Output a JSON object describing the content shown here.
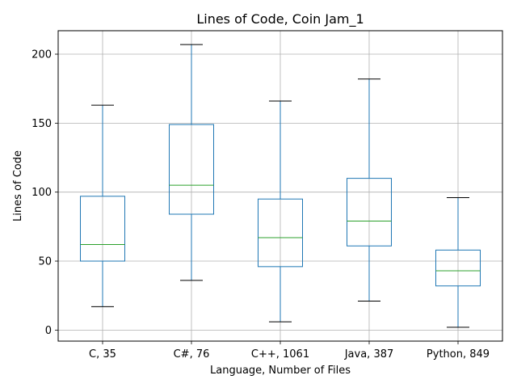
{
  "chart_data": {
    "type": "box",
    "title": "Lines of Code, Coin Jam_1",
    "xlabel": "Language, Number of Files",
    "ylabel": "Lines of Code",
    "ylim": [
      -8,
      217
    ],
    "yticks": [
      0,
      50,
      100,
      150,
      200
    ],
    "grid": true,
    "categories": [
      "C, 35",
      "C#, 76",
      "C++, 1061",
      "Java, 387",
      "Python, 849"
    ],
    "boxes": [
      {
        "whisker_low": 17,
        "q1": 50,
        "median": 62,
        "q3": 97,
        "whisker_high": 163
      },
      {
        "whisker_low": 36,
        "q1": 84,
        "median": 105,
        "q3": 149,
        "whisker_high": 207
      },
      {
        "whisker_low": 6,
        "q1": 46,
        "median": 67,
        "q3": 95,
        "whisker_high": 166
      },
      {
        "whisker_low": 21,
        "q1": 61,
        "median": 79,
        "q3": 110,
        "whisker_high": 182
      },
      {
        "whisker_low": 2,
        "q1": 32,
        "median": 43,
        "q3": 58,
        "whisker_high": 96
      }
    ],
    "colors": {
      "box": "#1f77b4",
      "median": "#2ca02c",
      "whisker_cap": "#000000",
      "grid": "#b0b0b0"
    }
  }
}
